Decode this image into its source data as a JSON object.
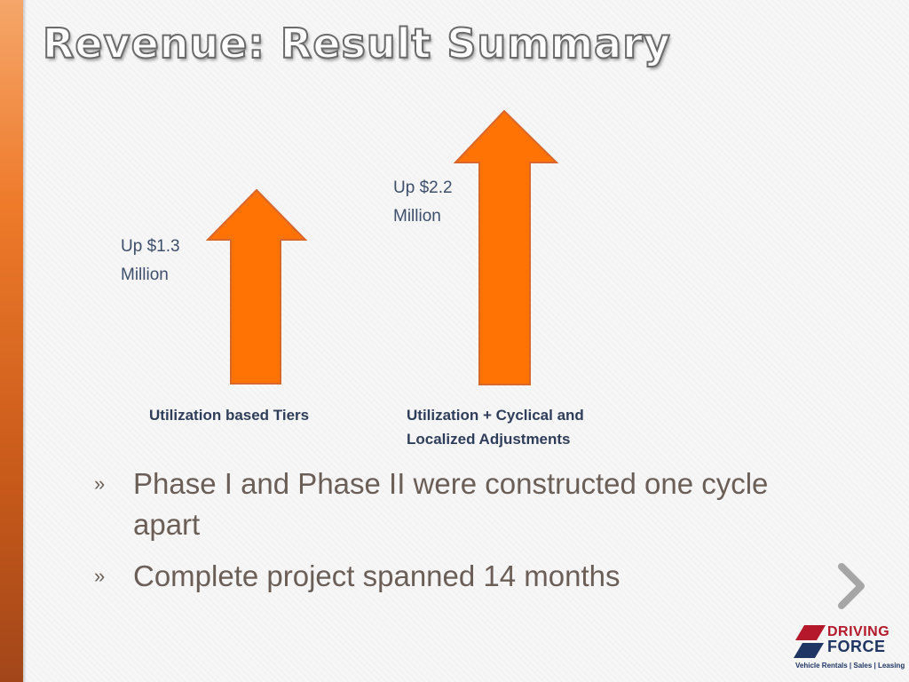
{
  "slide": {
    "title": "Revenue: Result Summary"
  },
  "arrows": [
    {
      "amount": "Up $1.3\nMillion",
      "caption": "Utilization based Tiers",
      "value": 1.3,
      "color": "#fe7304"
    },
    {
      "amount": "Up $2.2\nMillion",
      "caption": "Utilization + Cyclical and\nLocalized Adjustments",
      "value": 2.2,
      "color": "#fe7304"
    }
  ],
  "bullets": [
    {
      "marker": "»",
      "text": "Phase I and Phase II were constructed one cycle apart"
    },
    {
      "marker": "»",
      "text": "Complete project spanned 14 months"
    }
  ],
  "navigation": {
    "next_icon": "chevron-right-icon"
  },
  "logo": {
    "line1": "DRIVING",
    "line2": "FORCE",
    "registered": "®",
    "tagline": "Vehicle Rentals | Sales | Leasing",
    "colors": {
      "red": "#b5182a",
      "navy": "#1f3563"
    }
  },
  "colors": {
    "accent_bar": "#ee7a2a",
    "arrow_fill": "#fe7304",
    "arrow_stroke": "#d9672c"
  }
}
